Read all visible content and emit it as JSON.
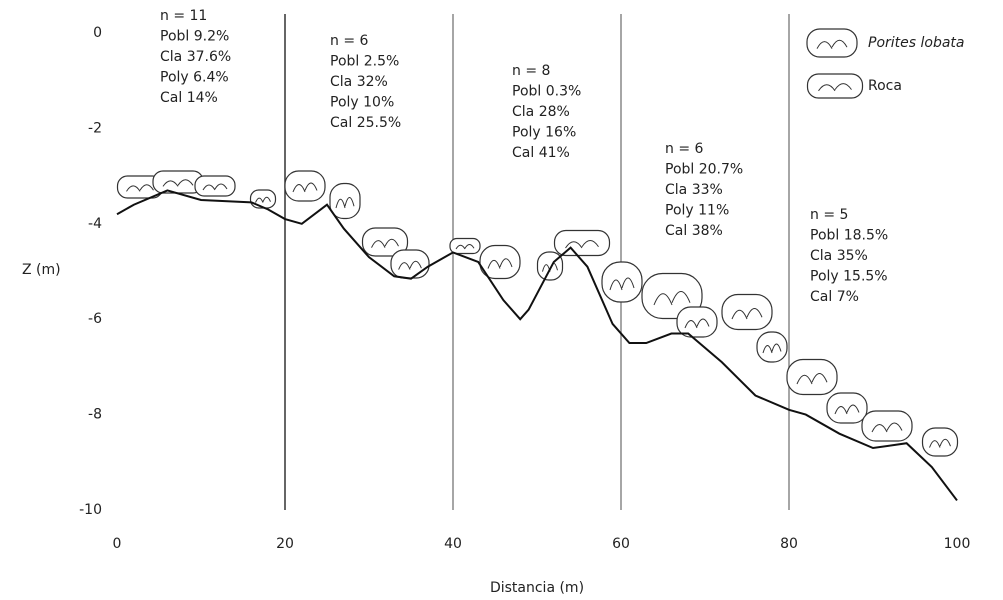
{
  "chart_data": {
    "type": "line",
    "x": [
      0,
      2,
      6,
      10,
      16,
      18,
      20,
      22,
      25,
      27,
      30,
      33,
      35,
      37,
      40,
      43,
      46,
      48,
      49,
      52,
      54,
      56,
      59,
      61,
      63,
      66,
      68,
      72,
      76,
      80,
      82,
      86,
      90,
      94,
      97,
      100
    ],
    "series": [
      {
        "color": "#111111",
        "values": [
          -3.8,
          -3.6,
          -3.3,
          -3.5,
          -3.55,
          -3.7,
          -3.9,
          -4.0,
          -3.6,
          -4.1,
          -4.7,
          -5.1,
          -5.15,
          -4.9,
          -4.6,
          -4.8,
          -5.6,
          -6.0,
          -5.8,
          -4.8,
          -4.5,
          -4.9,
          -6.1,
          -6.5,
          -6.5,
          -6.3,
          -6.3,
          -6.9,
          -7.6,
          -7.9,
          -8.0,
          -8.4,
          -8.7,
          -8.6,
          -9.1,
          -9.8
        ]
      }
    ],
    "xlim": [
      0,
      100
    ],
    "ylim": [
      -10,
      0
    ],
    "xticks": [
      0,
      20,
      40,
      60,
      80,
      100
    ],
    "yticks": [
      0,
      -2,
      -4,
      -6,
      -8,
      -10
    ],
    "dividers": [
      20,
      40,
      60,
      80
    ],
    "xlabel": "Distancia (m)",
    "ylabel": "Z (m)",
    "annotations": [
      [
        "n = 11",
        "Pobl 9.2%",
        "Cla 37.6%",
        "Poly 6.4%",
        "Cal 14%"
      ],
      [
        "n = 6",
        "Pobl 2.5%",
        "Cla 32%",
        "Poly 10%",
        "Cal 25.5%"
      ],
      [
        "n = 8",
        "Pobl 0.3%",
        "Cla 28%",
        "Poly 16%",
        "Cal 41%"
      ],
      [
        "n = 6",
        "Pobl 20.7%",
        "Cla 33%",
        "Poly 11%",
        "Cal 38%"
      ],
      [
        "n = 5",
        "Pobl 18.5%",
        "Cla 35%",
        "Poly 15.5%",
        "Cal 7%"
      ]
    ],
    "legend": [
      "Porites lobata",
      "Roca"
    ],
    "grid": false
  }
}
